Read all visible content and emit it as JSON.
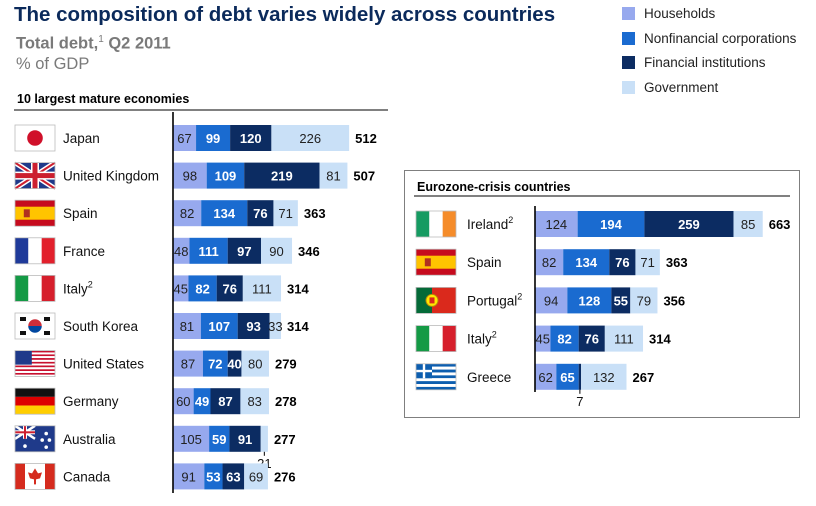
{
  "title": "The composition of debt varies widely across countries",
  "subtitle": "Total debt,",
  "subtitle_footnote": "1",
  "subtitle_period": "Q2 2011",
  "unit": "% of GDP",
  "colors": {
    "households": "#97a9ee",
    "nonfinancial": "#1a6bd0",
    "financial": "#0c2c62",
    "government": "#c9e0f7"
  },
  "legend": [
    {
      "label": "Households",
      "color": "#97a9ee"
    },
    {
      "label": "Nonfinancial corporations",
      "color": "#1a6bd0"
    },
    {
      "label": "Financial institutions",
      "color": "#0c2c62"
    },
    {
      "label": "Government",
      "color": "#c9e0f7"
    }
  ],
  "chart_data": [
    {
      "type": "bar",
      "stacked": true,
      "orientation": "horizontal",
      "title": "10 largest mature economies",
      "categories": [
        "Japan",
        "United Kingdom",
        "Spain",
        "France",
        "Italy",
        "South Korea",
        "United States",
        "Germany",
        "Australia",
        "Canada"
      ],
      "flags": [
        "japan",
        "uk",
        "spain",
        "france",
        "italy",
        "korea",
        "usa",
        "germany",
        "australia",
        "canada"
      ],
      "footnotes": [
        "",
        "",
        "",
        "",
        "2",
        "",
        "",
        "",
        "",
        ""
      ],
      "series": [
        {
          "name": "Households",
          "values": [
            67,
            98,
            82,
            48,
            45,
            81,
            87,
            60,
            105,
            91
          ]
        },
        {
          "name": "Nonfinancial corporations",
          "values": [
            99,
            109,
            134,
            111,
            82,
            107,
            72,
            49,
            59,
            53
          ]
        },
        {
          "name": "Financial institutions",
          "values": [
            120,
            219,
            76,
            97,
            76,
            93,
            40,
            87,
            91,
            63
          ]
        },
        {
          "name": "Government",
          "values": [
            226,
            81,
            71,
            90,
            111,
            33,
            80,
            83,
            21,
            69
          ]
        }
      ],
      "totals": [
        512,
        507,
        363,
        346,
        314,
        314,
        279,
        278,
        277,
        276
      ]
    },
    {
      "type": "bar",
      "stacked": true,
      "orientation": "horizontal",
      "title": "Eurozone-crisis countries",
      "categories": [
        "Ireland",
        "Spain",
        "Portugal",
        "Italy",
        "Greece"
      ],
      "flags": [
        "ireland",
        "spain",
        "portugal",
        "italy",
        "greece"
      ],
      "footnotes": [
        "2",
        "",
        "2",
        "2",
        ""
      ],
      "series": [
        {
          "name": "Households",
          "values": [
            124,
            82,
            94,
            45,
            62
          ]
        },
        {
          "name": "Nonfinancial corporations",
          "values": [
            194,
            134,
            128,
            82,
            65
          ]
        },
        {
          "name": "Financial institutions",
          "values": [
            259,
            76,
            55,
            76,
            7
          ]
        },
        {
          "name": "Government",
          "values": [
            85,
            71,
            79,
            111,
            132
          ]
        }
      ],
      "totals": [
        663,
        363,
        356,
        314,
        267
      ]
    }
  ]
}
